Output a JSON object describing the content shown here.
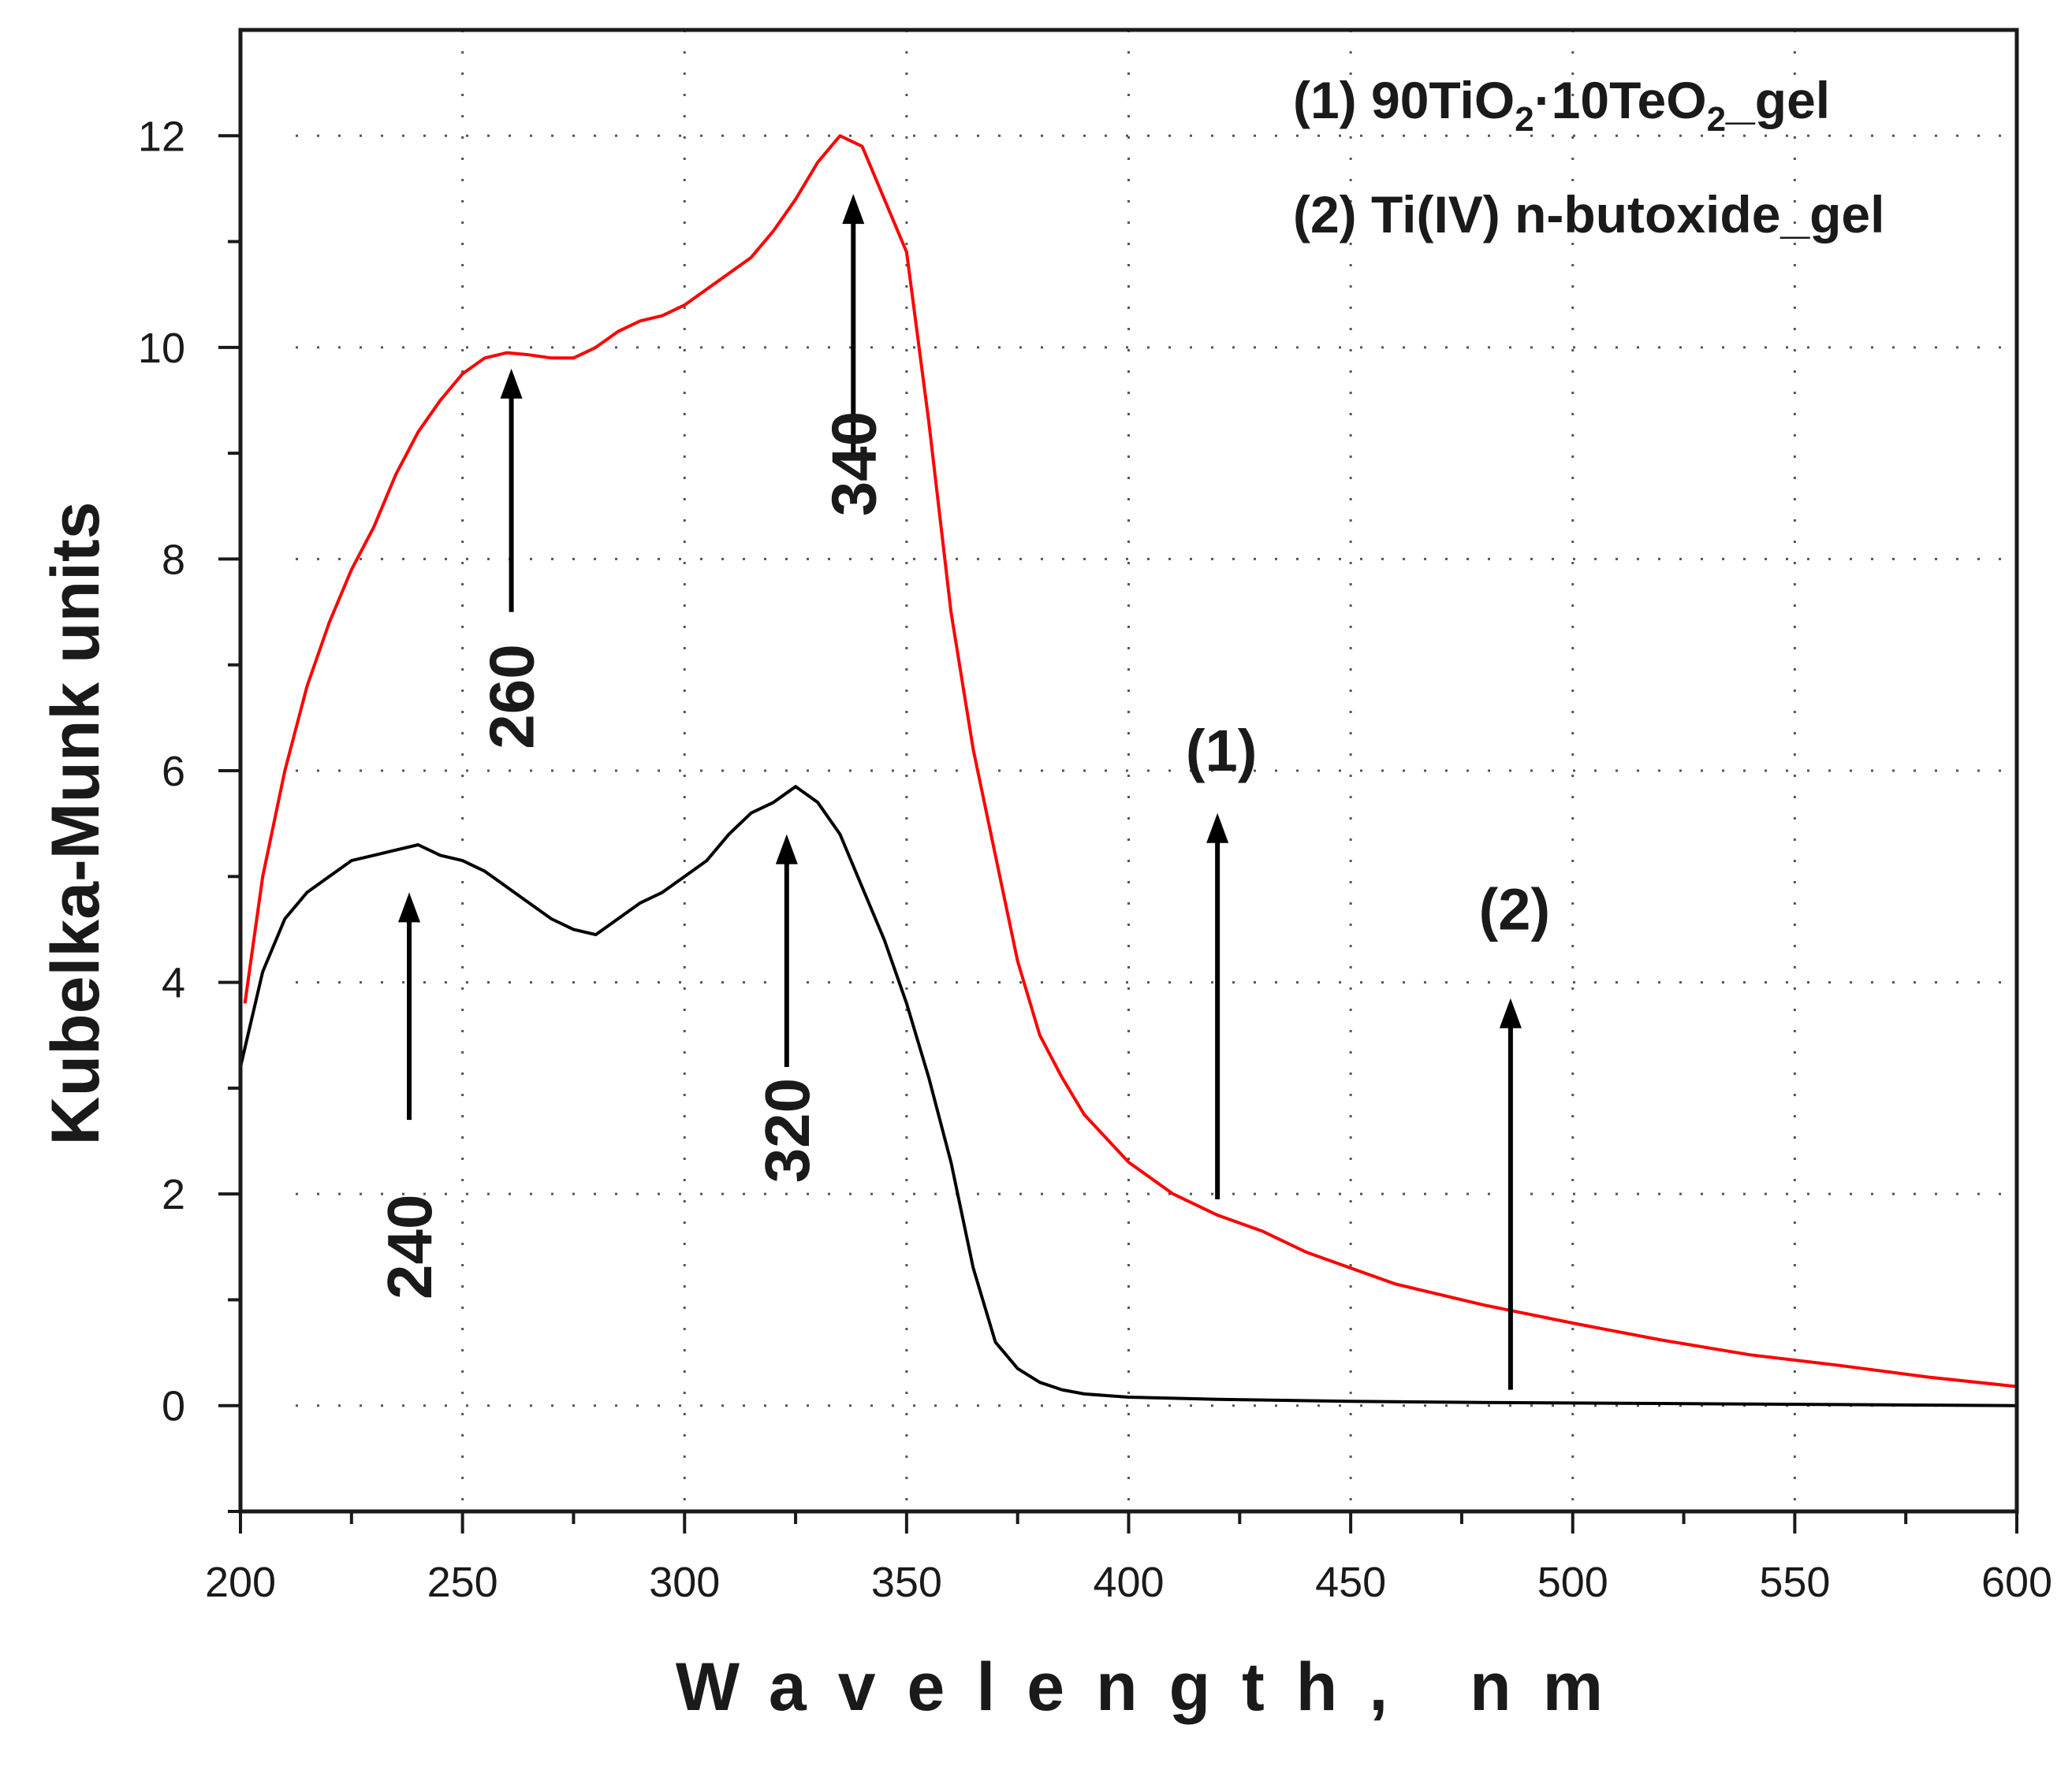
{
  "chart_data": {
    "type": "line",
    "title": "",
    "xlabel": "Wavelength, nm",
    "ylabel": "Kubelka-Munk units",
    "xlim": [
      200,
      600
    ],
    "ylim": [
      -1,
      13
    ],
    "xticks": [
      200,
      250,
      300,
      350,
      400,
      450,
      500,
      550,
      600
    ],
    "yticks": [
      0,
      2,
      4,
      6,
      8,
      10,
      12
    ],
    "grid": true,
    "legend": {
      "position": "top-right",
      "entries": [
        {
          "prefix": "(1) 90TiO",
          "sub1": "2",
          "mid": "·10TeO",
          "sub2": "2",
          "suffix": "_gel"
        },
        {
          "prefix": "(2) Ti(IV) n-butoxide_gel"
        }
      ]
    },
    "series": [
      {
        "name": "(1) 90TiO2·10TeO2_gel",
        "color": "#ff0000",
        "x": [
          201,
          205,
          210,
          215,
          220,
          225,
          230,
          235,
          240,
          245,
          250,
          255,
          260,
          265,
          270,
          275,
          280,
          285,
          290,
          295,
          300,
          305,
          310,
          315,
          320,
          325,
          330,
          335,
          340,
          345,
          350,
          355,
          360,
          365,
          370,
          375,
          380,
          385,
          390,
          400,
          410,
          420,
          430,
          440,
          450,
          460,
          480,
          500,
          520,
          540,
          560,
          580,
          600
        ],
        "y": [
          3.8,
          5.0,
          6.0,
          6.8,
          7.4,
          7.9,
          8.3,
          8.8,
          9.2,
          9.5,
          9.75,
          9.9,
          9.95,
          9.93,
          9.9,
          9.9,
          10.0,
          10.15,
          10.25,
          10.3,
          10.4,
          10.55,
          10.7,
          10.85,
          11.1,
          11.4,
          11.75,
          12.0,
          11.9,
          11.4,
          10.9,
          9.3,
          7.5,
          6.2,
          5.2,
          4.2,
          3.5,
          3.1,
          2.75,
          2.3,
          2.0,
          1.8,
          1.65,
          1.45,
          1.3,
          1.15,
          0.95,
          0.78,
          0.62,
          0.48,
          0.38,
          0.27,
          0.18
        ]
      },
      {
        "name": "(2) Ti(IV) n-butoxide_gel",
        "color": "#000000",
        "x": [
          200,
          205,
          210,
          215,
          220,
          225,
          230,
          235,
          240,
          245,
          250,
          255,
          260,
          265,
          270,
          275,
          280,
          285,
          290,
          295,
          300,
          305,
          310,
          315,
          320,
          325,
          330,
          335,
          340,
          345,
          350,
          355,
          360,
          365,
          370,
          375,
          380,
          385,
          390,
          400,
          420,
          450,
          480,
          520,
          560,
          600
        ],
        "y": [
          3.2,
          4.1,
          4.6,
          4.85,
          5.0,
          5.15,
          5.2,
          5.25,
          5.3,
          5.2,
          5.15,
          5.05,
          4.9,
          4.75,
          4.6,
          4.5,
          4.45,
          4.6,
          4.75,
          4.85,
          5.0,
          5.15,
          5.4,
          5.6,
          5.7,
          5.85,
          5.7,
          5.4,
          4.9,
          4.4,
          3.8,
          3.1,
          2.3,
          1.3,
          0.6,
          0.35,
          0.22,
          0.15,
          0.11,
          0.08,
          0.06,
          0.04,
          0.03,
          0.02,
          0.01,
          0.0
        ]
      }
    ],
    "annotations": [
      {
        "label": "240",
        "x": 238,
        "arrow_tip": 4.85,
        "arrow_base": 2.7,
        "label_y": 1.5
      },
      {
        "label": "260",
        "x": 261,
        "arrow_tip": 9.8,
        "arrow_base": 7.5,
        "label_y": 6.7
      },
      {
        "label": "320",
        "x": 323,
        "arrow_tip": 5.4,
        "arrow_base": 3.2,
        "label_y": 2.6
      },
      {
        "label": "340",
        "x": 338,
        "arrow_tip": 11.45,
        "arrow_base": 9.0,
        "label_y": 8.9
      }
    ],
    "curve_labels": [
      {
        "label": "(1)",
        "x": 420,
        "arrow_tip": 5.6,
        "arrow_base": 1.95,
        "label_y": 6.0
      },
      {
        "label": "(2)",
        "x": 486,
        "arrow_tip": 3.85,
        "arrow_base": 0.15,
        "label_y": 4.5
      }
    ]
  }
}
